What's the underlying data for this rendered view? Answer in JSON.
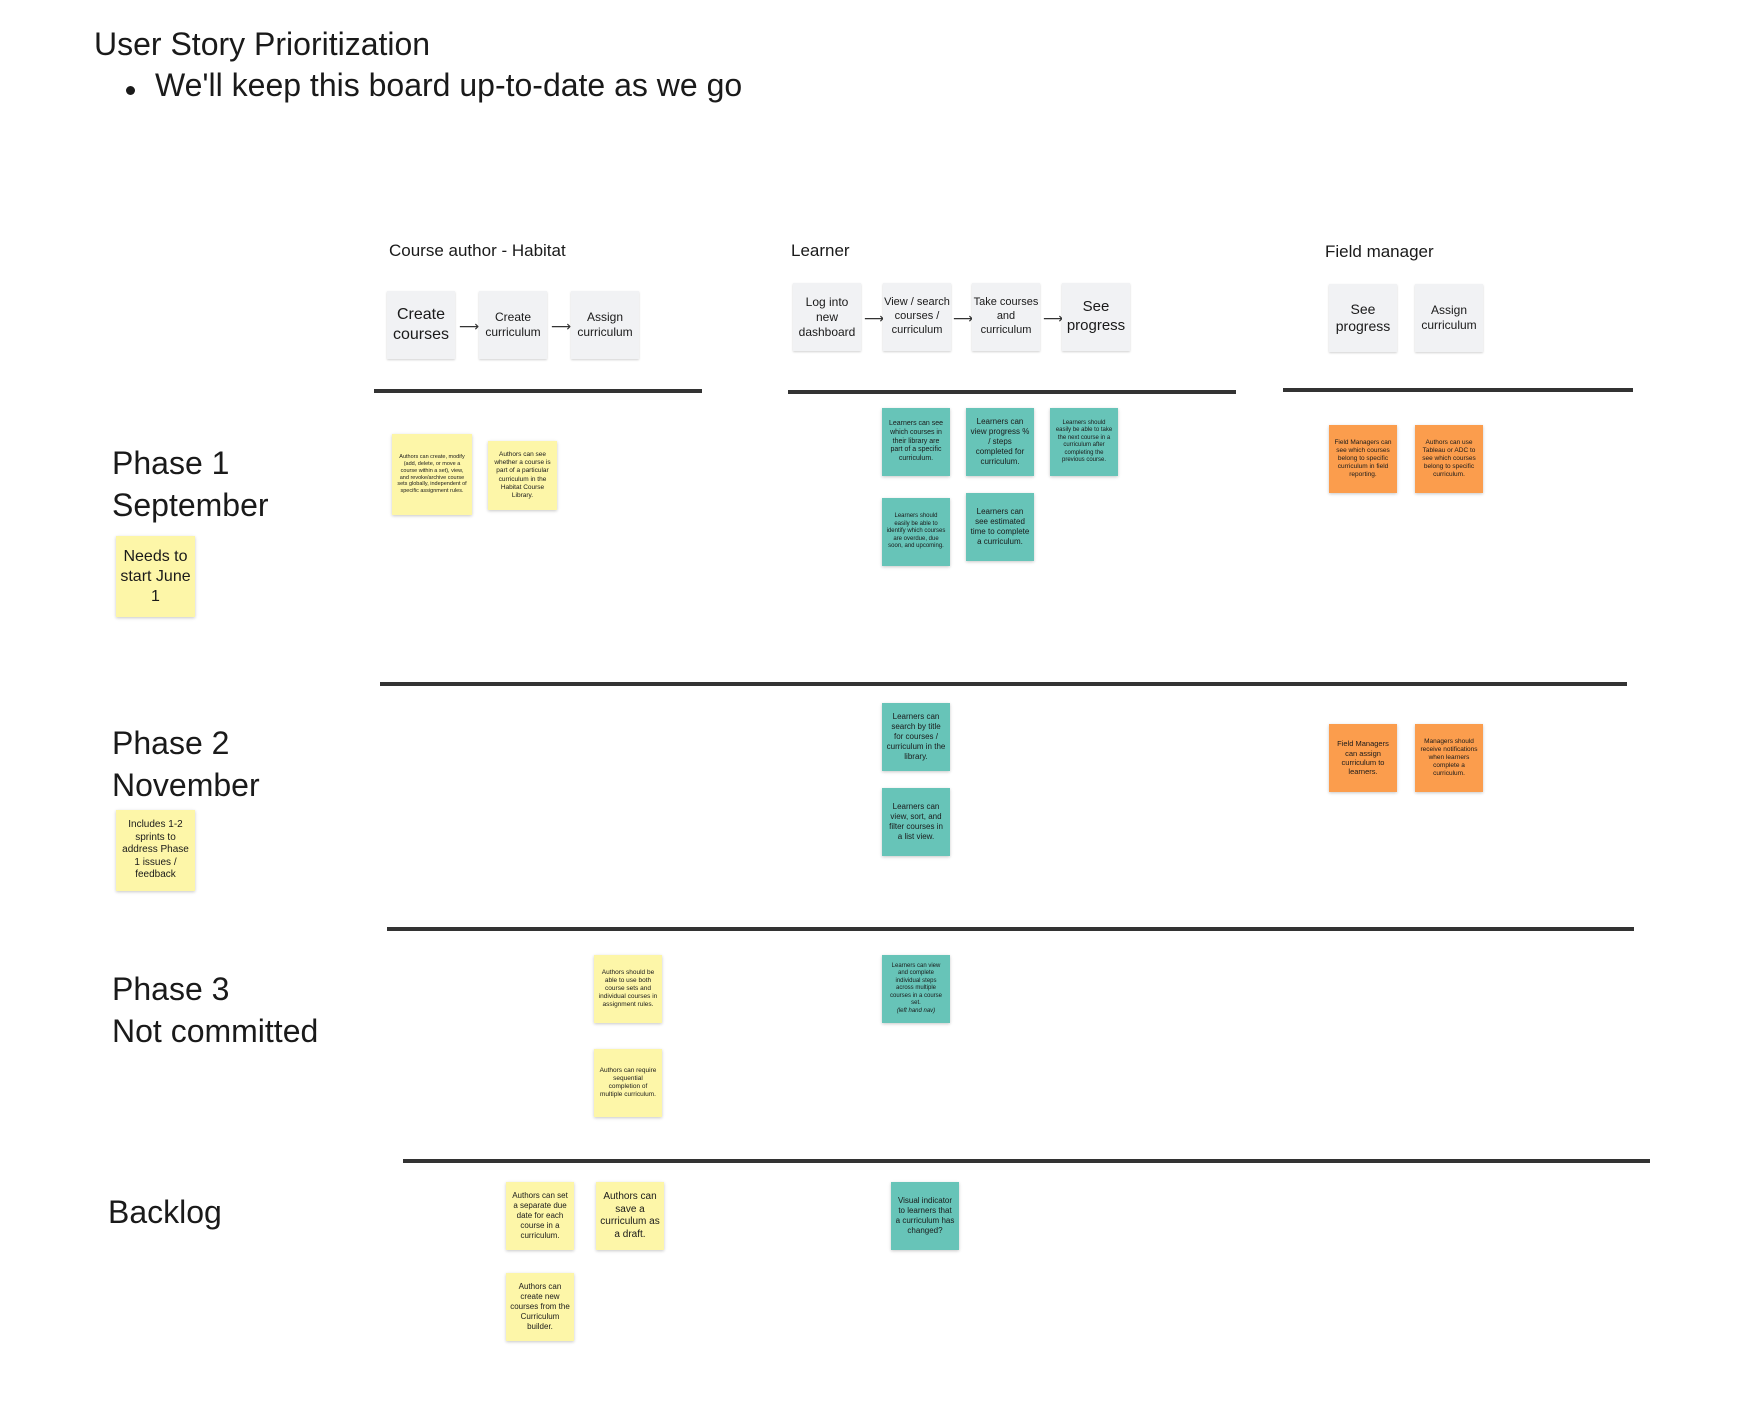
{
  "header": {
    "title": "User Story Prioritization",
    "bullet": "We'll keep this board up-to-date as we go"
  },
  "personas": {
    "author": {
      "label": "Course author - Habitat",
      "steps": [
        "Create courses",
        "Create curriculum",
        "Assign curriculum"
      ]
    },
    "learner": {
      "label": "Learner",
      "steps": [
        "Log into new dashboard",
        "View / search courses / curriculum",
        "Take courses and curriculum",
        "See progress"
      ]
    },
    "manager": {
      "label": "Field manager",
      "steps": [
        "See progress",
        "Assign curriculum"
      ]
    }
  },
  "phases": {
    "p1": {
      "label": "Phase 1\nSeptember",
      "note": "Needs to start June 1"
    },
    "p2": {
      "label": "Phase 2\nNovember",
      "note": "Includes 1-2 sprints to address Phase 1 issues / feedback"
    },
    "p3": {
      "label": "Phase 3\nNot committed"
    },
    "backlog": {
      "label": "Backlog"
    }
  },
  "stickies": {
    "p1_author_1": "Authors can create, modify (add, delete, or move a course within a set), view, and revoke/archive course sets globally, independent of specific assignment rules.",
    "p1_author_2": "Authors can see whether a course is part of a particular curriculum in the Habitat Course Library.",
    "p1_learner_1": "Learners can see which courses in their library are part of a specific curriculum.",
    "p1_learner_2": "Learners can view progress % / steps completed for curriculum.",
    "p1_learner_3": "Learners should easily be able to take the next course in a curriculum after completing the previous course.",
    "p1_learner_4": "Learners should easily be able to identify which courses are overdue, due soon, and upcoming.",
    "p1_learner_5": "Learners can see estimated time to complete a curriculum.",
    "p1_manager_1": "Field Managers can see which courses belong to specific curriculum in field reporting.",
    "p1_manager_2": "Authors can use Tableau or ADC to see which courses belong to specific curriculum.",
    "p2_learner_1": "Learners can search by title for courses / curriculum in the library.",
    "p2_learner_2": "Learners can view, sort, and filter courses in a list view.",
    "p2_manager_1": "Field Managers can assign curriculum to learners.",
    "p2_manager_2": "Managers should receive notifications when learners complete a curriculum.",
    "p3_author_1": "Authors should be able to use both course sets and individual courses in assignment rules.",
    "p3_author_2": "Authors can require sequential completion of multiple curriculum.",
    "p3_learner_1": "Learners can view and complete individual steps across multiple courses in a course set.",
    "p3_learner_1_sub": "(left hand nav)",
    "bl_author_1": "Authors can set a separate due date for each course in a curriculum.",
    "bl_author_2": "Authors can save a curriculum as a draft.",
    "bl_author_3": "Authors can create new courses from the Curriculum builder.",
    "bl_learner_1": "Visual indicator to learners that a curriculum has changed?"
  },
  "colors": {
    "yellow": "#fdf6a8",
    "teal": "#67c4b8",
    "orange": "#fb9d4d",
    "step_card": "#f1f2f4",
    "divider": "#333333"
  }
}
